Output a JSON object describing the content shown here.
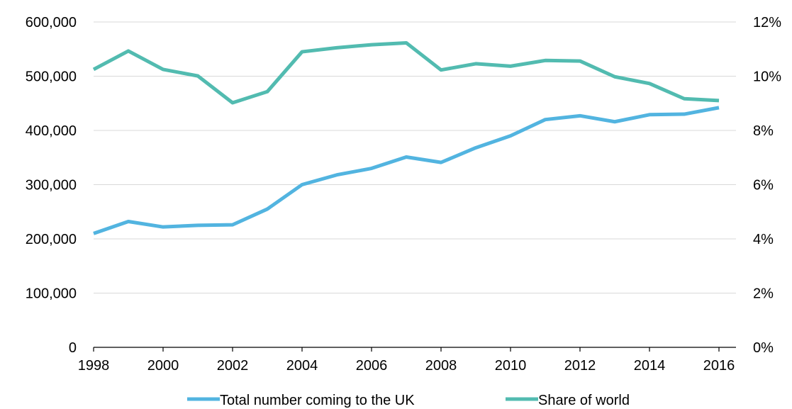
{
  "chart_data": {
    "type": "line",
    "title": "",
    "xlabel": "",
    "ylabel": "",
    "y2label": "",
    "x": [
      1998,
      1999,
      2000,
      2001,
      2002,
      2003,
      2004,
      2005,
      2006,
      2007,
      2008,
      2009,
      2010,
      2011,
      2012,
      2013,
      2014,
      2015,
      2016
    ],
    "x_tick_labels": [
      "1998",
      "2000",
      "2002",
      "2004",
      "2006",
      "2008",
      "2010",
      "2012",
      "2014",
      "2016"
    ],
    "x_ticks": [
      1998,
      2000,
      2002,
      2004,
      2006,
      2008,
      2010,
      2012,
      2014,
      2016
    ],
    "xlim": [
      1998,
      2016
    ],
    "ylim": [
      0,
      600000
    ],
    "y_ticks": [
      0,
      100000,
      200000,
      300000,
      400000,
      500000,
      600000
    ],
    "y_tick_labels": [
      "0",
      "100,000",
      "200,000",
      "300,000",
      "400,000",
      "500,000",
      "600,000"
    ],
    "y2lim": [
      0,
      12
    ],
    "y2_ticks": [
      0,
      2,
      4,
      6,
      8,
      10,
      12
    ],
    "y2_tick_labels": [
      "0%",
      "2%",
      "4%",
      "6%",
      "8%",
      "10%",
      "12%"
    ],
    "grid": "horizontal",
    "legend_position": "bottom",
    "series": [
      {
        "name": "Total number coming to the UK",
        "axis": "left",
        "color": "#52b4e0",
        "values": [
          210000,
          232000,
          222000,
          225000,
          226000,
          255000,
          300000,
          318000,
          330000,
          351000,
          341000,
          368000,
          390000,
          420000,
          427000,
          416000,
          429000,
          430000,
          442000
        ]
      },
      {
        "name": "Share of world",
        "axis": "right",
        "color": "#52bbb0",
        "values": [
          10.25,
          10.93,
          10.25,
          10.01,
          9.02,
          9.43,
          10.9,
          11.05,
          11.16,
          11.23,
          10.23,
          10.46,
          10.37,
          10.58,
          10.56,
          9.98,
          9.73,
          9.17,
          9.1
        ]
      }
    ]
  }
}
